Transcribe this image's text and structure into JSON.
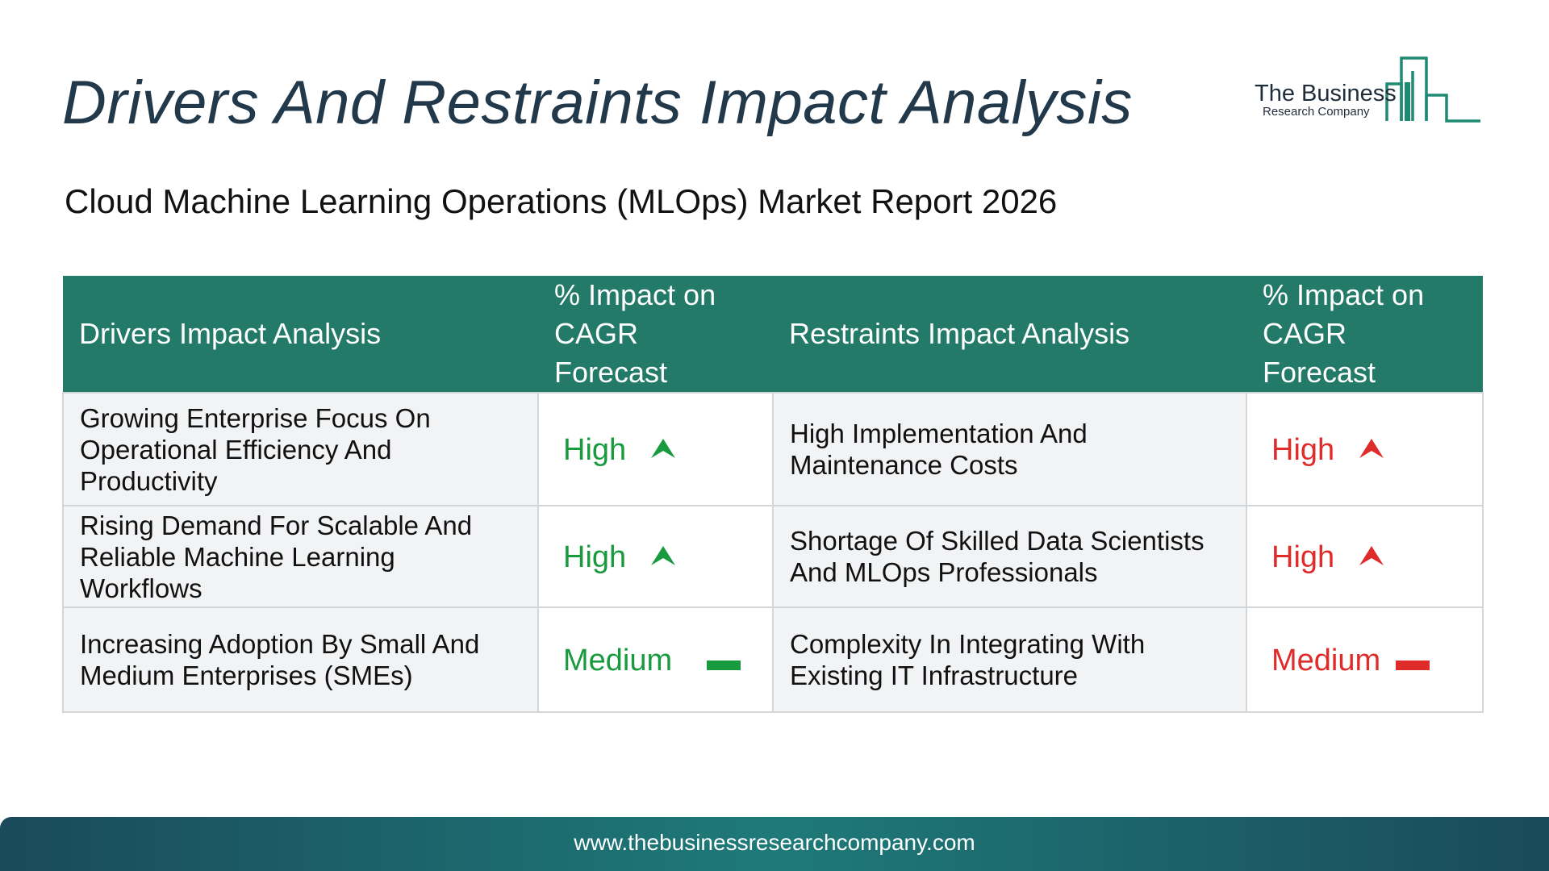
{
  "title": "Drivers And Restraints Impact Analysis",
  "subtitle": "Cloud Machine Learning Operations (MLOps)  Market Report 2026",
  "logo": {
    "line1": "The Business",
    "line2": "Research Company",
    "color": "#1e8a72"
  },
  "table": {
    "headers": {
      "drivers": "Drivers Impact Analysis",
      "drivers_impact_line1": "% Impact on",
      "drivers_impact_line2": "CAGR Forecast",
      "restraints": "Restraints Impact Analysis",
      "restraints_impact_line1": "% Impact on",
      "restraints_impact_line2": "CAGR Forecast"
    },
    "rows": [
      {
        "driver": "Growing Enterprise Focus On Operational Efficiency And Productivity",
        "driver_impact": "High",
        "driver_icon": "up-arrow-icon",
        "restraint": "High Implementation And Maintenance Costs",
        "restraint_impact": "High",
        "restraint_icon": "up-arrow-icon"
      },
      {
        "driver": "Rising Demand For Scalable And Reliable Machine Learning Workflows",
        "driver_impact": "High",
        "driver_icon": "up-arrow-icon",
        "restraint": "Shortage Of Skilled Data Scientists And MLOps Professionals",
        "restraint_impact": "High",
        "restraint_icon": "up-arrow-icon"
      },
      {
        "driver": "Increasing Adoption By Small And Medium Enterprises (SMEs)",
        "driver_impact": "Medium",
        "driver_icon": "dash-icon",
        "restraint": "Complexity In Integrating With Existing IT Infrastructure",
        "restraint_impact": "Medium",
        "restraint_icon": "dash-icon"
      }
    ]
  },
  "colors": {
    "header_bg": "#237a68",
    "driver_impact": "#1a9a3e",
    "restraint_impact": "#e02b2b",
    "title": "#22394b"
  },
  "footer": {
    "url": "www.thebusinessresearchcompany.com"
  }
}
